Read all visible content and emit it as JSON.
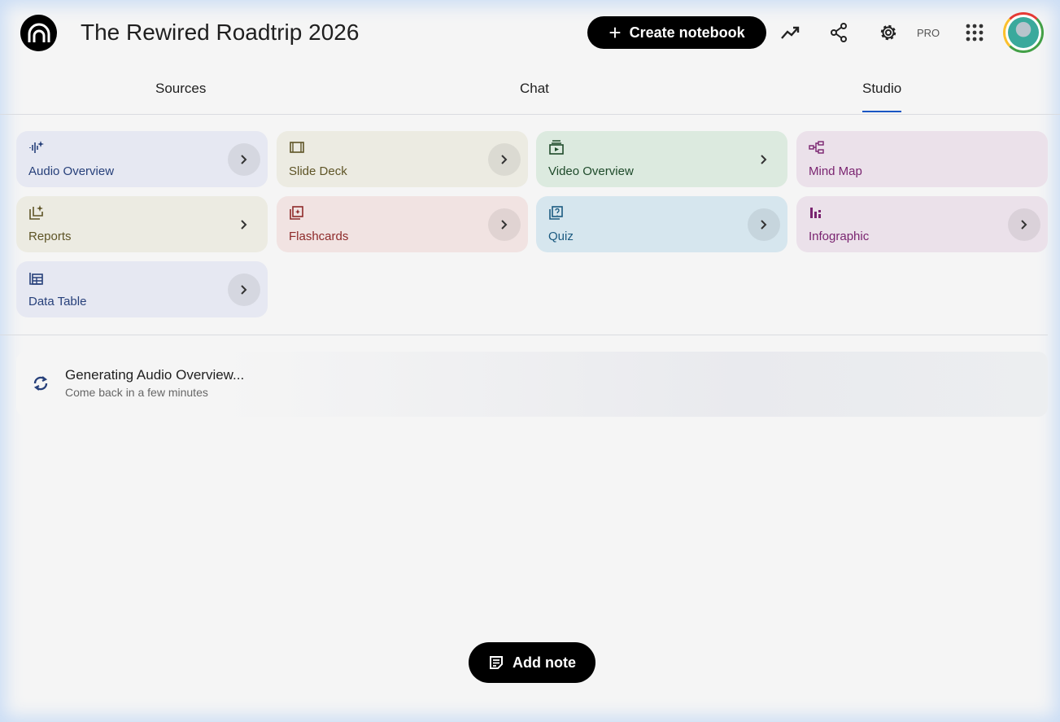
{
  "header": {
    "title": "The Rewired Roadtrip 2026",
    "create_label": "Create notebook",
    "pro_label": "PRO"
  },
  "tabs": [
    {
      "label": "Sources"
    },
    {
      "label": "Chat"
    },
    {
      "label": "Studio",
      "active": true
    }
  ],
  "studio": {
    "cards": [
      {
        "label": "Audio Overview",
        "icon": "audio-waveform-icon",
        "bg": "#e6e8f2",
        "color": "#27407a"
      },
      {
        "label": "Slide Deck",
        "icon": "slides-icon",
        "bg": "#ecebe2",
        "color": "#5e5426"
      },
      {
        "label": "Video Overview",
        "icon": "video-icon",
        "bg": "#dceadf",
        "color": "#1e4a2a"
      },
      {
        "label": "Mind Map",
        "icon": "mind-map-icon",
        "bg": "#ebe1ea",
        "color": "#7a2470"
      },
      {
        "label": "Reports",
        "icon": "reports-icon",
        "bg": "#ecebe2",
        "color": "#5e5426"
      },
      {
        "label": "Flashcards",
        "icon": "flashcards-icon",
        "bg": "#f1e3e2",
        "color": "#8e2a2a"
      },
      {
        "label": "Quiz",
        "icon": "quiz-icon",
        "bg": "#d6e6ee",
        "color": "#1b5a80"
      },
      {
        "label": "Infographic",
        "icon": "infographic-icon",
        "bg": "#ebe1ea",
        "color": "#7a2470"
      },
      {
        "label": "Data Table",
        "icon": "table-icon",
        "bg": "#e6e8f2",
        "color": "#27407a"
      }
    ],
    "generating": {
      "title": "Generating Audio Overview...",
      "subtitle": "Come back in a few minutes"
    },
    "add_note_label": "Add note"
  }
}
